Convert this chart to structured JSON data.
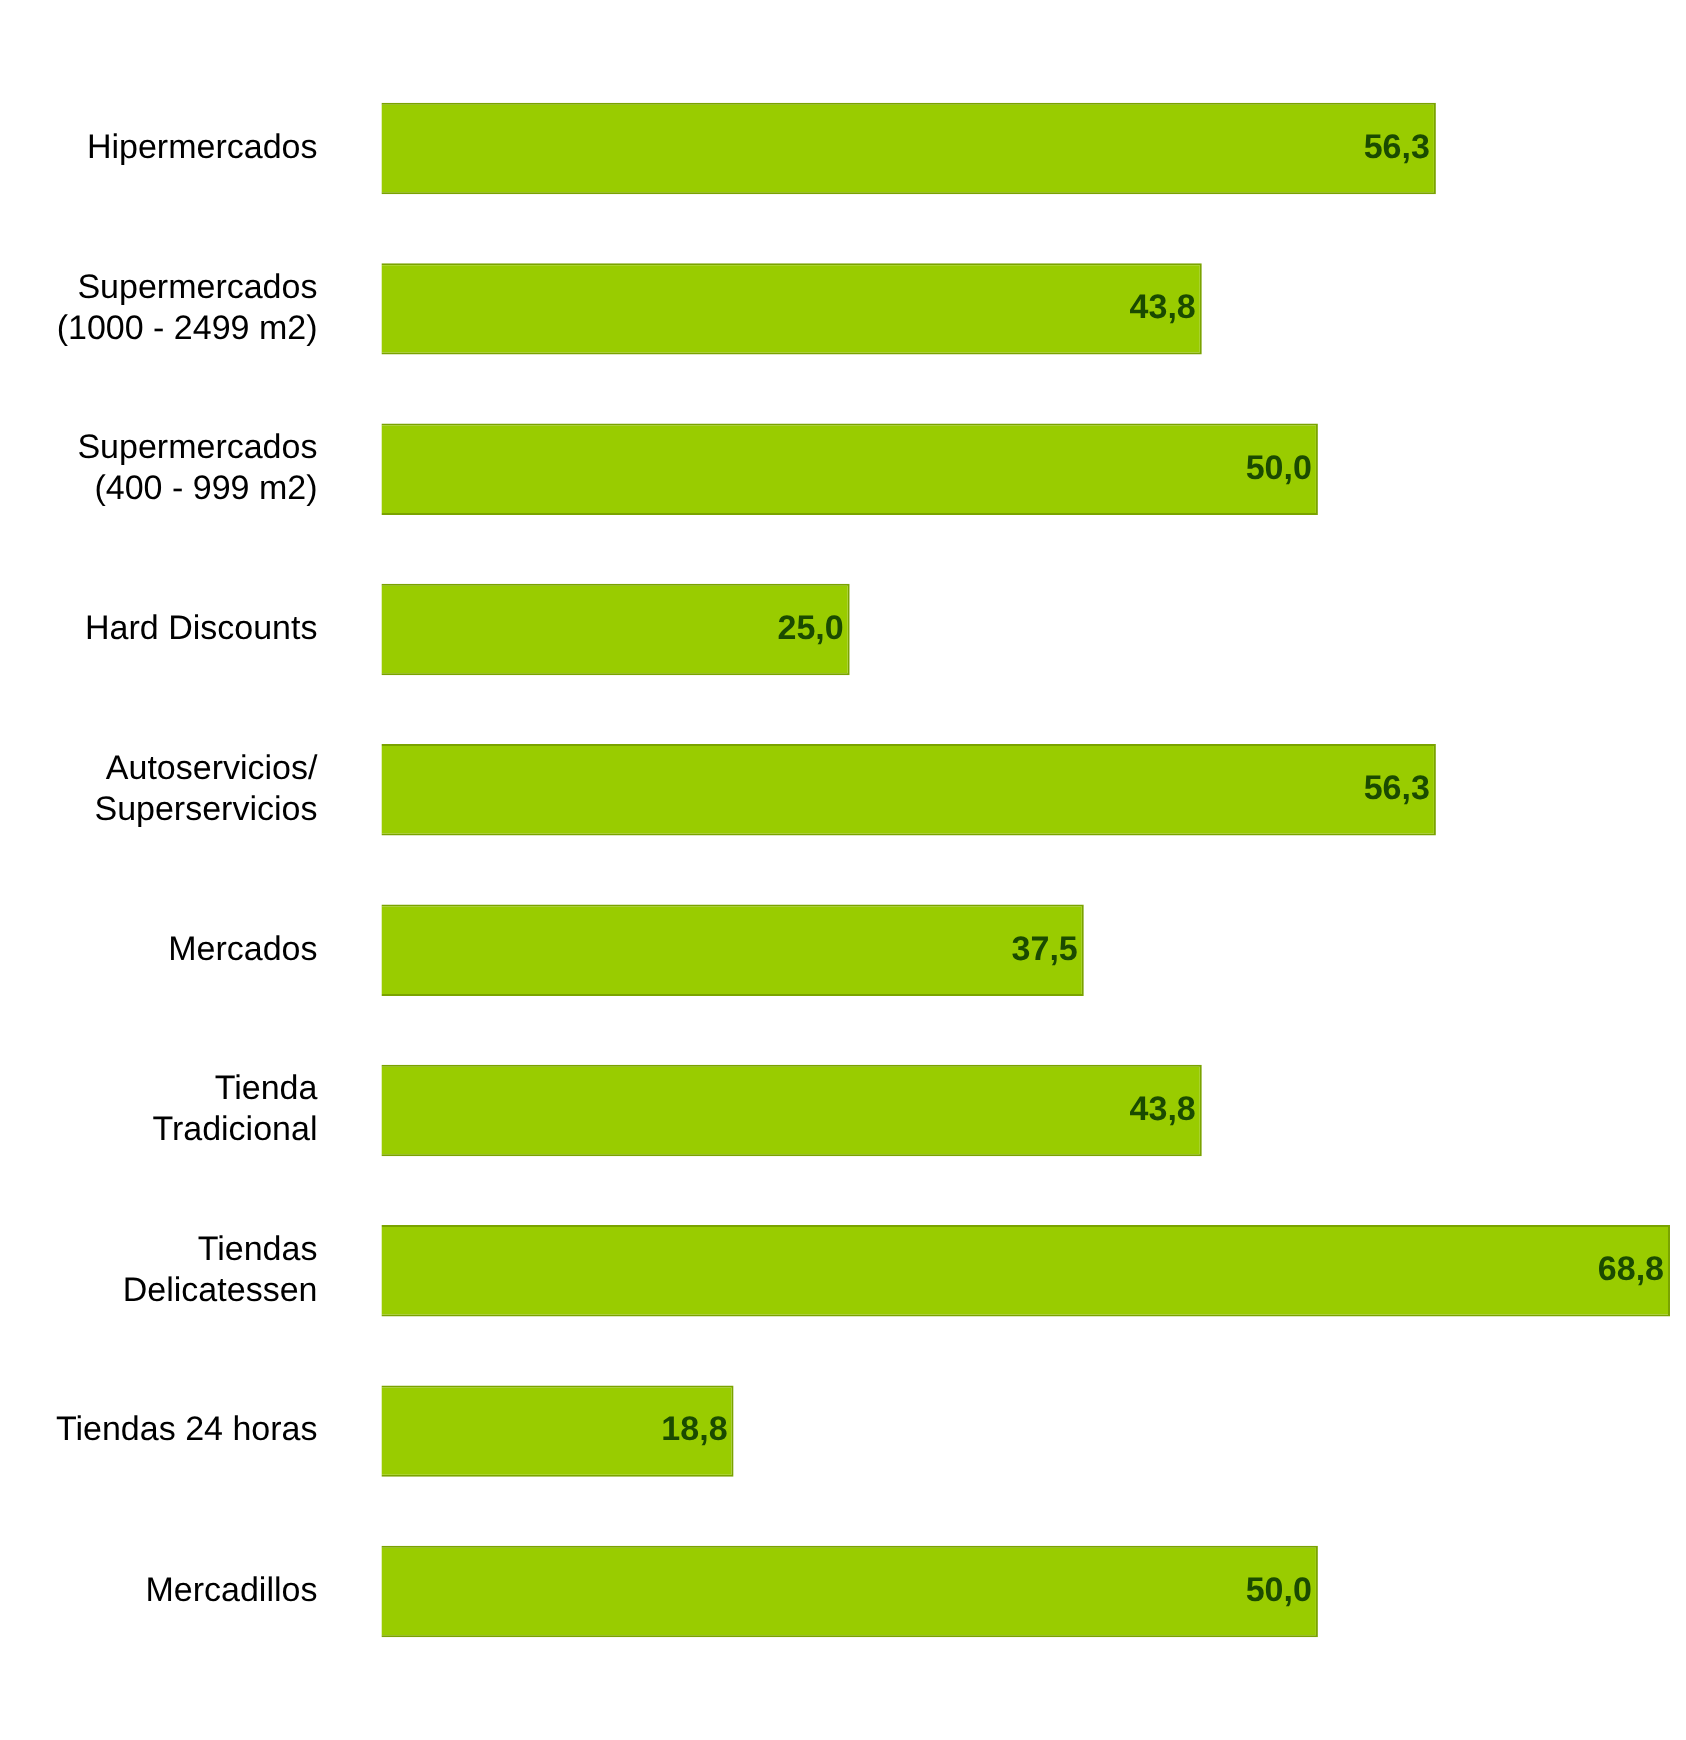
{
  "chart_data": {
    "type": "bar",
    "orientation": "horizontal",
    "categories": [
      "Hipermercados",
      "Supermercados\n(1000 - 2499 m2)",
      "Supermercados\n(400 - 999 m2)",
      "Hard Discounts",
      "Autoservicios/\nSuperservicios",
      "Mercados",
      "Tienda\nTradicional",
      "Tiendas\nDelicatessen",
      "Tiendas 24 horas",
      "Mercadillos"
    ],
    "values": [
      56.3,
      43.8,
      50.0,
      25.0,
      56.3,
      37.5,
      43.8,
      68.8,
      18.8,
      50.0
    ],
    "value_labels": [
      "56,3",
      "43,8",
      "50,0",
      "25,0",
      "56,3",
      "37,5",
      "43,8",
      "68,8",
      "18,8",
      "50,0"
    ],
    "color": "#99cc00",
    "legend": false
  }
}
